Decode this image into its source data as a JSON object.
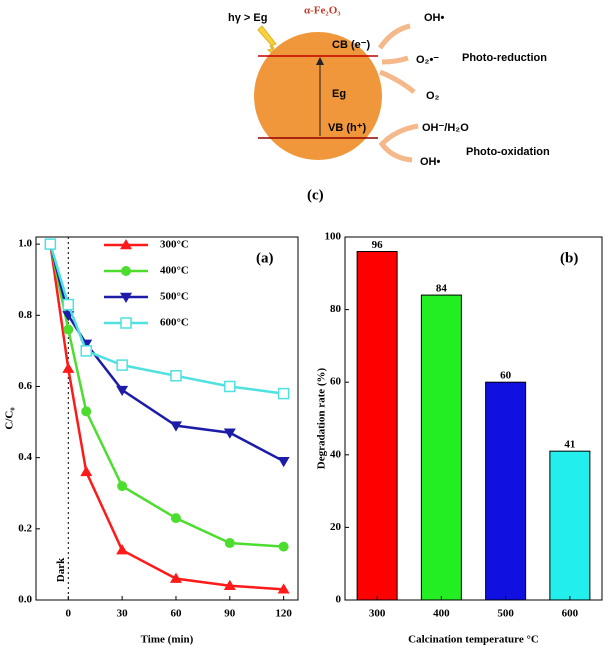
{
  "diagram": {
    "panel_label": "(c)",
    "material": "α-Fe₂O₃",
    "excitation": "hγ > Eg",
    "cb": "CB (e⁻)",
    "gap": "Eg",
    "vb": "VB (h⁺)",
    "products_reduction": [
      "OH•",
      "O₂•⁻",
      "O₂"
    ],
    "reduction_label": "Photo-reduction",
    "products_oxidation": [
      "OH⁻/H₂O",
      "OH•"
    ],
    "oxidation_label": "Photo-oxidation"
  },
  "chart_data": [
    {
      "type": "line",
      "panel_label": "(a)",
      "x_label": "Time (min)",
      "y_label": "C/C₀",
      "x": [
        -10,
        0,
        10,
        30,
        60,
        90,
        120
      ],
      "series": [
        {
          "name": "300°C",
          "color": "#ff1a1a",
          "marker": "triangle-up",
          "values": [
            1.0,
            0.65,
            0.36,
            0.14,
            0.06,
            0.04,
            0.03
          ]
        },
        {
          "name": "400°C",
          "color": "#4ddd2e",
          "marker": "circle",
          "values": [
            1.0,
            0.76,
            0.53,
            0.32,
            0.23,
            0.16,
            0.15
          ]
        },
        {
          "name": "500°C",
          "color": "#1c1ca8",
          "marker": "triangle-down",
          "values": [
            1.0,
            0.8,
            0.72,
            0.59,
            0.49,
            0.47,
            0.39
          ]
        },
        {
          "name": "600°C",
          "color": "#4fe0e0",
          "marker": "square-open",
          "values": [
            1.0,
            0.83,
            0.7,
            0.66,
            0.63,
            0.6,
            0.58
          ]
        }
      ],
      "xlim": [
        -18,
        128
      ],
      "xticks": [
        0,
        30,
        60,
        90,
        120
      ],
      "ylim": [
        0,
        1.02
      ],
      "yticks": [
        {
          "value": 0,
          "label": "0.0"
        },
        0.2,
        0.4,
        0.6,
        0.8,
        {
          "value": 1,
          "label": "1.0"
        }
      ],
      "vline": 0,
      "vline_label": "Dark",
      "legend": "upper center"
    },
    {
      "type": "bar",
      "panel_label": "(b)",
      "x_label": "Calcination  temperature  °C",
      "y_label": "Degradation rate (%)",
      "categories": [
        "300",
        "400",
        "500",
        "600"
      ],
      "values": [
        96,
        84,
        60,
        41
      ],
      "colors": [
        "#ff0000",
        "#22ee22",
        "#1010e0",
        "#22eeee"
      ],
      "ylim": [
        0,
        100
      ],
      "yticks": [
        0,
        20,
        40,
        60,
        80,
        100
      ]
    }
  ]
}
